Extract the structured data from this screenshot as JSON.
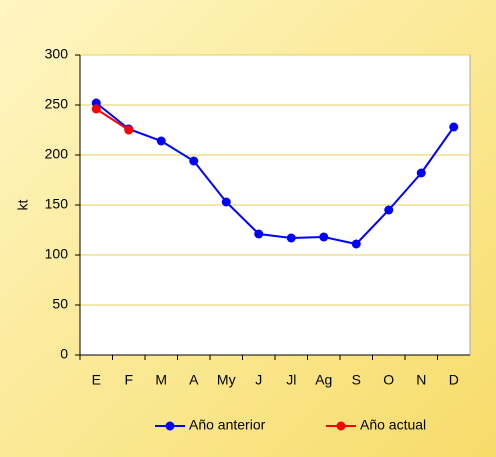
{
  "chart_data": {
    "type": "line",
    "y_label": "kt",
    "categories": [
      "E",
      "F",
      "M",
      "A",
      "My",
      "J",
      "Jl",
      "Ag",
      "S",
      "O",
      "N",
      "D"
    ],
    "series": [
      {
        "name": "Año anterior",
        "color": "#0000ff",
        "values": [
          252,
          226,
          214,
          194,
          153,
          121,
          117,
          118,
          111,
          145,
          182,
          228
        ]
      },
      {
        "name": "Año actual",
        "color": "#ff0000",
        "values": [
          246,
          225,
          null,
          null,
          null,
          null,
          null,
          null,
          null,
          null,
          null,
          null
        ]
      }
    ],
    "ylim": [
      0,
      300
    ],
    "yticks": [
      0,
      50,
      100,
      150,
      200,
      250,
      300
    ],
    "grid": true,
    "legend": "bottom"
  }
}
